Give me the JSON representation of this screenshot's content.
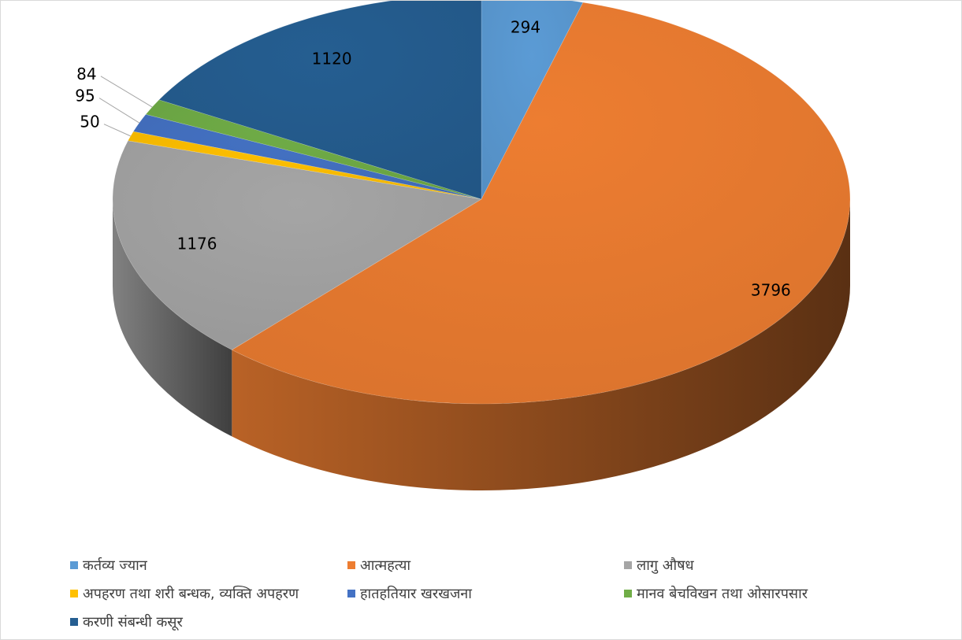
{
  "chart_data": {
    "type": "pie",
    "style": "3d",
    "title": "",
    "categories": [
      "कर्तव्य ज्यान",
      "आत्महत्या",
      "लागु औषध",
      "अपहरण तथा शरी बन्धक, व्यक्ति अपहरण",
      "हातहतियार खरखजना",
      "मानव बेचविखन तथा ओसारपसार",
      "करणी संबन्धी कसूर"
    ],
    "values": [
      294,
      3796,
      1176,
      50,
      95,
      84,
      1120
    ],
    "colors": [
      "#5b9bd5",
      "#ed7d31",
      "#a5a5a5",
      "#ffc000",
      "#4472c4",
      "#70ad47",
      "#255e91"
    ],
    "data_labels": [
      "294",
      "3796",
      "1176",
      "50",
      "95",
      "84",
      "1120"
    ],
    "legend_position": "bottom"
  }
}
